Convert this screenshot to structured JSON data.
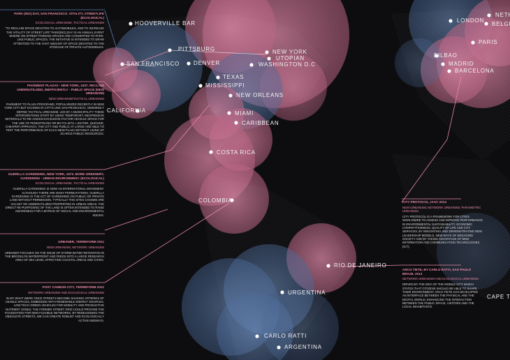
{
  "colors": {
    "background": "#0d0d0f",
    "pink_accent": "#e88aa6",
    "blue_accent": "#5a7fb5",
    "bubble_pink": "#c86a8a",
    "bubble_blue": "#5a7aa8"
  },
  "cities": [
    {
      "name": "HOOVERVILLE BAR"
    },
    {
      "name": "PITTSBURG"
    },
    {
      "name": "NEW YORK"
    },
    {
      "name": "UTOPIAN"
    },
    {
      "name": "WASHINGTON D.C"
    },
    {
      "name": "SAN FRANCISCO"
    },
    {
      "name": "DENVER"
    },
    {
      "name": "TEXAS"
    },
    {
      "name": "MISSISSIPPI"
    },
    {
      "name": "NEW ORLEANS"
    },
    {
      "name": "CALIFORNIA"
    },
    {
      "name": "MIAMI"
    },
    {
      "name": "CARIBBEAN"
    },
    {
      "name": "COSTA RICA"
    },
    {
      "name": "COLOMBIA"
    },
    {
      "name": "RIO DE JANEIRO"
    },
    {
      "name": "URGENTINA"
    },
    {
      "name": "CARLO RATTI"
    },
    {
      "name": "ARGENTINA"
    },
    {
      "name": "LONDON"
    },
    {
      "name": "NETH"
    },
    {
      "name": "BELGIU"
    },
    {
      "name": "PARIS"
    },
    {
      "name": "BILBAO"
    },
    {
      "name": "MADRID"
    },
    {
      "name": "BARCELONA"
    },
    {
      "name": "CAPE TOW"
    }
  ],
  "panels": {
    "park_day": {
      "title": "PARK (ING) DAY, SAN FRANCISCO. VITALITY, STREETLIFE (ECOLOGICAL)",
      "subtitle": "ECOLOGICAL URBANISM, TACTICAL URBANISM",
      "body": "\"TO RECLAIM SPACE DEVOTED TO AUTOMOBILES, AND TO INCREASE THE VITALITY OF STREET LIFE\" PARK(ING) DAY IS AN ANNUAL EVENT WHERE ON-STREET PARKING SPACES ARE CONVERTED TO PARK-LIKE PUBLIC SPACES. THE INITIATIVE IS INTENDED TO DRAW ATTENTION TO THE VAST AMOUNT OF SPACE DEVOTED TO THE STORAGE OF PRIVATE AUTOMOBILES."
    },
    "pavement_plazas": {
      "title": "PAVEMENT PLAZAS - NEW YORK, 1937. RECLAIM UNDERUTILIZED, INEFFICIENTLY - PUBLIC SPACE (NEW URBANISM)",
      "subtitle": "NEW URBANISM/TACTICAL URBANISM",
      "body": "PAVEMENT TO PLAZA PROGRAMS, POPULARIZED RECENTLY IN NEW YORK CITY BUT ECHOED IN CITY'S LIKE SAN FRANCISCO, SEEMINGLY DEFINE TACTICAL URBANISM. LED BY A MUNICIPALITY THESE INTERVENTIONS START BY USING TEMPORARY, INEXPENSIVE MATERIALS TO RE-ASSIGN EXCESSIVE FACTOR VEHICLE SPACE FOR THE USE OF PEDESTRIANS OR BICYCLISTS. LIGHTER, QUICKER, CHEAPER APPROACH, THE CITY AND PUBLIC AT LARGE ARE ABLE TO TEST THE PERFORMANCE OF EACH NEW PLAZA WITHOUT USING UP SCARCE PUBLIC RESOURCES."
    },
    "guerilla_gardening": {
      "title": "GUERILLA GARDENING, NEW YORK, 1973. MORE GREENERY, GARDENING - URBAN ENVIRONMENT. (ECOLOGICAL)",
      "subtitle": "ECOLOGICAL URBANISM, TACTICAL URBANISM",
      "body": "GUERILLA GARDENING IS NOW AN INTERNATIONAL MOVEMENT. ALTHOUGH THERE ARE MANY PERMUTATIONS, GUERILLA GARDENING IS THE ACT OF GARDENING ON PUBLIC OR PRIVATE LAND WITHOUT PERMISSION. TYPICALLY THE SITES CHOSEN ARE VACANT OR UNDERUTILIZED PROPERTIES IN URBAN AREAS. THE DIRECT RE-PURPOSING OF THE LAND IS OFTEN INTENDED TO RAISE AWARENESS FOR A MYRIAD OF SOCIAL AND ENVIRONMENTAL ISSUES."
    },
    "urbaner": {
      "title": "URBANER, TERREFORM 2011",
      "subtitle": "NEW URBANISM, NETWORK URBANISM",
      "body": "URBANER FOCUSES ON THE ISSUE OF STORM WATER RETENTION IN THE BROOKLYN WATERFRONT AND FEEDS INTO A LARGE RESEARCH AREA OF SEA LEVEL AFFECTING COASTAL AREAS AND CITIES."
    },
    "post_carbon": {
      "title": "POST CARBON CITY, TERREFORM 2012",
      "subtitle": "NETWORK URBANISM AND ECOLOGICAL URBANISM",
      "body": "IN MY WHAT WERE ONCE STREETS BECOME SHAKING ARTERIES OF USABLE SPACES, EMBEDDED WITH RENEWABLE ENERGY SOURCES, LOW-TECH GREEN VEHICLES FOR MOBILITY AND PRODUCTIVE NUTRIENT ZONES. THE FORMER STREET GRID COULD PROVIDE THE FOUNDATION FOR NEW FLEXIBLE NETWORKS. BY REDESIGNING THE OBSOLETE STREETS, WE CAN CREATE ROBUST AND ECOLOGICALLY ACTIVE MIDWAYS."
    },
    "city_protocol": {
      "title": "CITY PROTOCOL, IAAC 2014",
      "subtitle": "NEW URBANISM, NETWORK URBANISM, PARAMETRIC URBANISM",
      "body": "CITY PROTOCOL IS A FRAMEWORK FOR CITIES WORLDWIDE TO ASSESS AND IMPROVE PERFORMANCE IN ENVIRONMENTAL SUSTAINABILITY, ECONOMIC COMPETITIVENESS, QUALITY OF LIFE AND CITY SERVICES, BY INNOVATING AND DEMONSTRATING NEW LEADERSHIP MODELS, NEW WAYS OF ENGAGING SOCIETY AND BY TAKING ADVANTAGE OF NEW INFORMATION AND COMMUNICATION TECHNOLOGIES (ICT)."
    },
    "arco_tiete": {
      "title": "ARCO TIETE, BY CARLO RATTI, SAO PAULO BRAZIL 2013",
      "subtitle": "NETWORK URBANISM AND ECOLOGICAL URBANISM",
      "body": "DRIVEN BY THE IDEA OF THE MOBILE CITY WHICH STATES THAT CITIZENS SHOULD BE ABLE TO SHAPE THEIR ENVIRONMENT, ARCO TIETE HAS DEVELOPED AN INTERFACE BETWEEN THE PHYSICAL AND THE DIGITAL WORLD, ENHANCING THE INTERACTION BETWEEN THE PUBLIC SPACE, VISITORS AND THE LOCAL INHABITANTS."
    }
  }
}
